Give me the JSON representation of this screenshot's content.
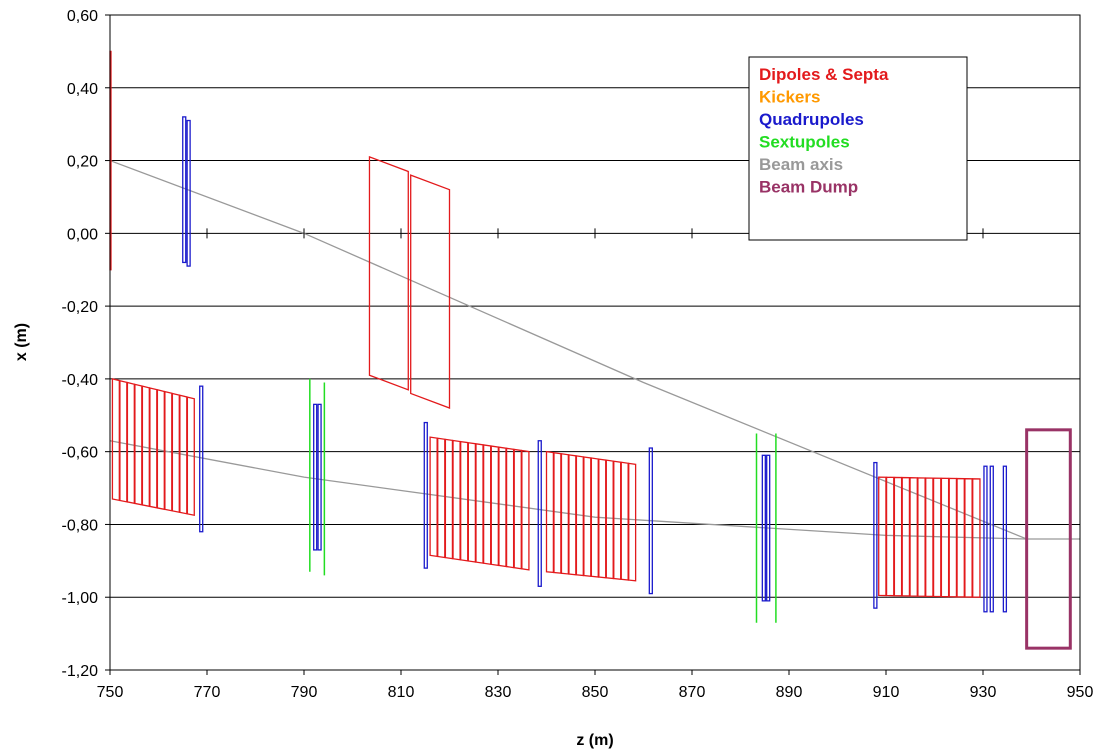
{
  "chart_data": {
    "type": "line",
    "xlabel": "z (m)",
    "ylabel": "x (m)",
    "xlim": [
      750,
      950
    ],
    "ylim": [
      -1.2,
      0.6
    ],
    "x_ticks": [
      "750",
      "770",
      "790",
      "810",
      "830",
      "850",
      "870",
      "890",
      "910",
      "930",
      "950"
    ],
    "y_ticks": [
      "0,60",
      "0,40",
      "0,20",
      "0,00",
      "-0,20",
      "-0,40",
      "-0,60",
      "-0,80",
      "-1,00",
      "-1,20"
    ],
    "grid": "horizontal",
    "legend_position": "top-right",
    "legend": [
      {
        "label": "Dipoles & Septa",
        "color": "#e31a1c"
      },
      {
        "label": "Kickers",
        "color": "#ff9900"
      },
      {
        "label": "Quadrupoles",
        "color": "#1a1acc"
      },
      {
        "label": "Sextupoles",
        "color": "#22dd22"
      },
      {
        "label": "Beam axis",
        "color": "#999999"
      },
      {
        "label": "Beam Dump",
        "color": "#993366"
      }
    ],
    "series": [
      {
        "name": "Beam axis",
        "color": "#999999",
        "lines": [
          [
            [
              750,
              0.2
            ],
            [
              790,
              0.0
            ],
            [
              860,
              -0.41
            ],
            [
              939,
              -0.84
            ],
            [
              950,
              -0.84
            ]
          ],
          [
            [
              750,
              -0.57
            ],
            [
              790,
              -0.67
            ],
            [
              850,
              -0.78
            ],
            [
              910,
              -0.83
            ],
            [
              939,
              -0.84
            ]
          ]
        ]
      },
      {
        "name": "Dipoles & Septa",
        "color": "#e31a1c",
        "parallelograms": [
          {
            "z0": 750.0,
            "z1": 750.2,
            "top0": 0.5,
            "bot0": -0.1,
            "top1": 0.5,
            "bot1": -0.1
          },
          {
            "z0": 803.5,
            "z1": 811.5,
            "top0": 0.21,
            "bot0": -0.39,
            "top1": 0.17,
            "bot1": -0.43
          },
          {
            "z0": 812.0,
            "z1": 820.0,
            "top0": 0.16,
            "bot0": -0.44,
            "top1": 0.12,
            "bot1": -0.48
          }
        ],
        "segmented_blocks": [
          {
            "z_start": 750.5,
            "z_end": 767.5,
            "n": 11,
            "top0": -0.4,
            "top1": -0.455,
            "bot0": -0.73,
            "bot1": -0.775
          },
          {
            "z_start": 816.0,
            "z_end": 836.5,
            "n": 13,
            "top0": -0.56,
            "top1": -0.6,
            "bot0": -0.885,
            "bot1": -0.925
          },
          {
            "z_start": 840.0,
            "z_end": 858.5,
            "n": 12,
            "top0": -0.6,
            "top1": -0.635,
            "bot0": -0.93,
            "bot1": -0.955
          },
          {
            "z_start": 908.5,
            "z_end": 929.5,
            "n": 13,
            "top0": -0.67,
            "top1": -0.675,
            "bot0": -0.995,
            "bot1": -1.0
          }
        ]
      },
      {
        "name": "Quadrupoles",
        "color": "#1a1acc",
        "boxes": [
          {
            "z0": 765.0,
            "z1": 765.6,
            "top": 0.32,
            "bot": -0.08
          },
          {
            "z0": 765.9,
            "z1": 766.5,
            "top": 0.31,
            "bot": -0.09
          },
          {
            "z0": 768.5,
            "z1": 769.1,
            "top": -0.42,
            "bot": -0.82
          },
          {
            "z0": 792.0,
            "z1": 792.6,
            "top": -0.47,
            "bot": -0.87
          },
          {
            "z0": 792.9,
            "z1": 793.5,
            "top": -0.47,
            "bot": -0.87
          },
          {
            "z0": 814.8,
            "z1": 815.4,
            "top": -0.52,
            "bot": -0.92
          },
          {
            "z0": 838.3,
            "z1": 838.9,
            "top": -0.57,
            "bot": -0.97
          },
          {
            "z0": 861.2,
            "z1": 861.8,
            "top": -0.59,
            "bot": -0.99
          },
          {
            "z0": 884.5,
            "z1": 885.1,
            "top": -0.61,
            "bot": -1.01
          },
          {
            "z0": 885.4,
            "z1": 886.0,
            "top": -0.61,
            "bot": -1.01
          },
          {
            "z0": 907.5,
            "z1": 908.1,
            "top": -0.63,
            "bot": -1.03
          },
          {
            "z0": 930.2,
            "z1": 930.8,
            "top": -0.64,
            "bot": -1.04
          },
          {
            "z0": 931.5,
            "z1": 932.1,
            "top": -0.64,
            "bot": -1.04
          },
          {
            "z0": 934.2,
            "z1": 934.8,
            "top": -0.64,
            "bot": -1.04
          }
        ]
      },
      {
        "name": "Sextupoles",
        "color": "#22dd22",
        "lines": [
          [
            [
              791.2,
              -0.4
            ],
            [
              791.2,
              -0.93
            ]
          ],
          [
            [
              794.2,
              -0.41
            ],
            [
              794.2,
              -0.94
            ]
          ],
          [
            [
              883.3,
              -0.55
            ],
            [
              883.3,
              -1.07
            ]
          ],
          [
            [
              887.3,
              -0.55
            ],
            [
              887.3,
              -1.07
            ]
          ]
        ]
      },
      {
        "name": "Beam Dump",
        "color": "#993366",
        "box": {
          "z0": 939.0,
          "z1": 948.0,
          "top": -0.54,
          "bot": -1.14
        }
      }
    ]
  }
}
